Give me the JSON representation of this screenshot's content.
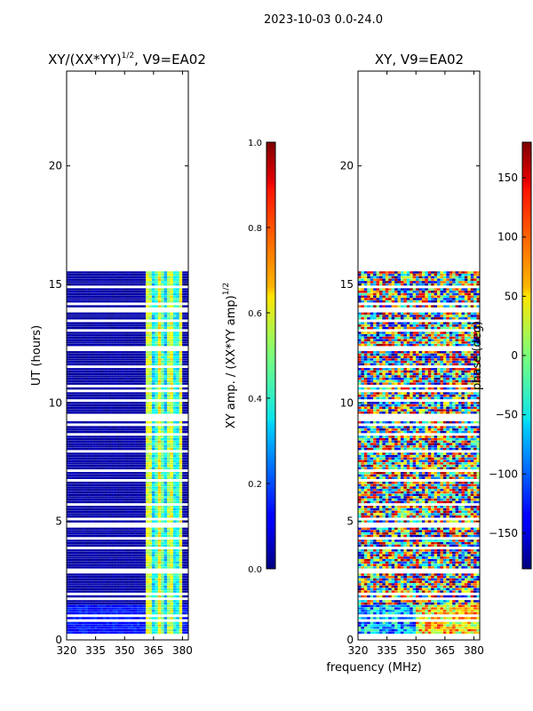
{
  "figure": {
    "suptitle": "2023-10-03 0.0-24.0",
    "shared_xlabel": "frequency (MHz)"
  },
  "chart_data": [
    {
      "type": "heatmap",
      "title": "XY/(XX*YY)",
      "title_exponent": "1/2",
      "title_suffix": ", V9=EA02",
      "xlabel": "",
      "ylabel": "UT (hours)",
      "xlim": [
        320,
        383
      ],
      "ylim": [
        0,
        24
      ],
      "xticks": [
        320,
        335,
        350,
        365,
        380
      ],
      "yticks": [
        0,
        5,
        10,
        15,
        20
      ],
      "data_extent_ut": [
        0.25,
        15.55
      ],
      "colorbar": {
        "label": "XY amp. / (XX*YY amp)",
        "label_exponent": "1/2",
        "range": [
          0.0,
          1.0
        ],
        "ticks": [
          "0.0",
          "0.2",
          "0.4",
          "0.6",
          "0.8",
          "1.0"
        ],
        "tick_values": [
          0.0,
          0.2,
          0.4,
          0.6,
          0.8,
          1.0
        ]
      }
    },
    {
      "type": "heatmap",
      "title": "XY, V9=EA02",
      "xlabel": "frequency (MHz)",
      "ylabel": "",
      "xlim": [
        320,
        383
      ],
      "ylim": [
        0,
        24
      ],
      "xticks": [
        320,
        335,
        350,
        365,
        380
      ],
      "yticks": [
        0,
        5,
        10,
        15,
        20
      ],
      "data_extent_ut": [
        0.25,
        15.55
      ],
      "colorbar": {
        "label": "phase (deg)",
        "range": [
          -180,
          180
        ],
        "ticks": [
          "150",
          "100",
          "50",
          "0",
          "−50",
          "−100",
          "−150"
        ],
        "tick_values": [
          150,
          100,
          50,
          0,
          -50,
          -100,
          -150
        ]
      }
    }
  ]
}
